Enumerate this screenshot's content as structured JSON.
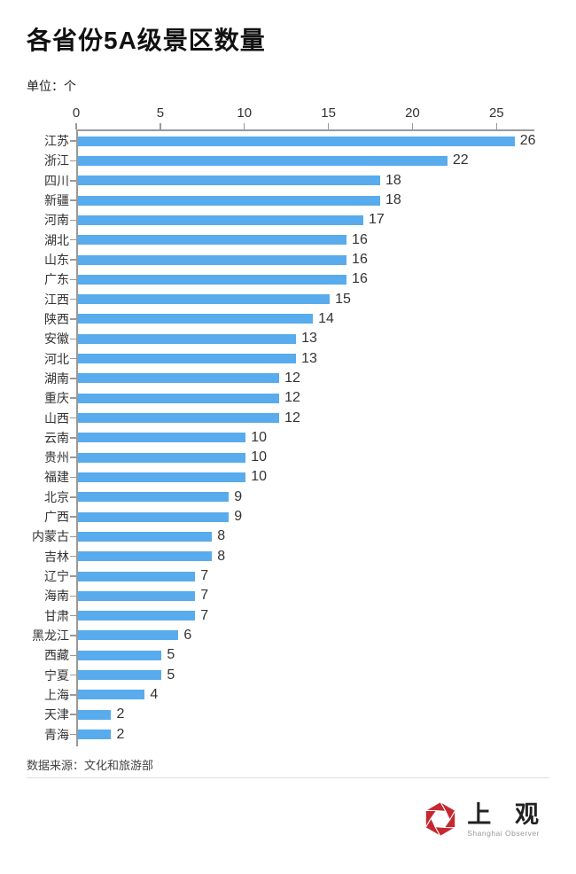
{
  "header": {
    "title": "各省份5A级景区数量",
    "unit_label": "单位：个"
  },
  "chart_data": {
    "type": "bar",
    "orientation": "horizontal",
    "title": "各省份5A级景区数量",
    "unit": "个",
    "categories": [
      "江苏",
      "浙江",
      "四川",
      "新疆",
      "河南",
      "湖北",
      "山东",
      "广东",
      "江西",
      "陕西",
      "安徽",
      "河北",
      "湖南",
      "重庆",
      "山西",
      "云南",
      "贵州",
      "福建",
      "北京",
      "广西",
      "内蒙古",
      "吉林",
      "辽宁",
      "海南",
      "甘肃",
      "黑龙江",
      "西藏",
      "宁夏",
      "上海",
      "天津",
      "青海"
    ],
    "values": [
      26,
      22,
      18,
      18,
      17,
      16,
      16,
      16,
      15,
      14,
      13,
      13,
      12,
      12,
      12,
      10,
      10,
      10,
      9,
      9,
      8,
      8,
      7,
      7,
      7,
      6,
      5,
      5,
      4,
      2,
      2
    ],
    "x_ticks": [
      0,
      5,
      10,
      15,
      20,
      25
    ],
    "xlim": [
      0,
      27.25
    ],
    "axis_position": "top",
    "grid": false,
    "value_labels": true,
    "bar_color": "#58ABEC",
    "axis_color": "#999999",
    "label_color": "#333333"
  },
  "footer": {
    "source_label": "数据来源：文化和旅游部"
  },
  "logo": {
    "name_cn": "上 观",
    "name_en": "Shanghai Observer",
    "icon_color": "#c5282f"
  }
}
